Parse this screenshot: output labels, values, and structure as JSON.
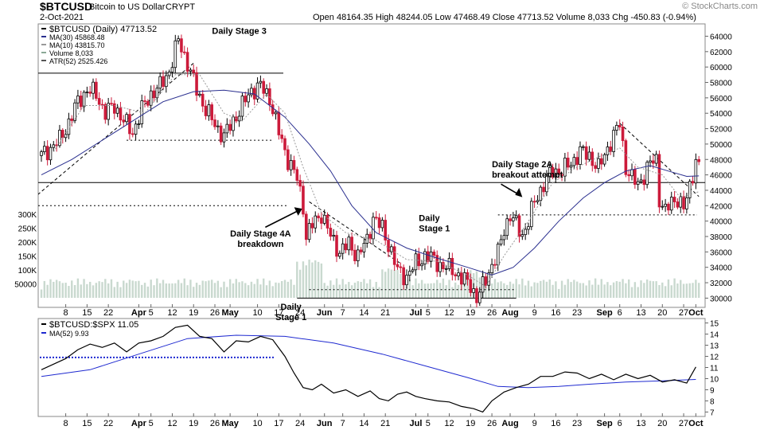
{
  "header": {
    "symbol": "$BTCUSD",
    "name": "Bitcoin to US Dollar",
    "exchange": "CRYPT",
    "date": "2-Oct-2021",
    "quote": "Open 48164.35  High 48244.05  Low 47468.49  Close 47713.52  Volume 8,033  Chg -450.83 (-0.94%)",
    "watermark": "© StockCharts.com"
  },
  "colors": {
    "up": "#000000",
    "down": "#cc1b3b",
    "ma30": "#2a2f8f",
    "ma10": "#999999",
    "volume": "#c9d9cf",
    "ratio": "#000000",
    "ratio_ma": "#1f2ad0"
  },
  "chart_data": [
    {
      "type": "candlestick",
      "legend": [
        "$BTCUSD (Daily) 47713.52",
        "MA(30) 45868.48",
        "MA(10) 43815.70",
        "Volume 8,033",
        "ATR(52) 2525.426"
      ],
      "y_ticks": [
        30000,
        32000,
        34000,
        36000,
        38000,
        40000,
        42000,
        44000,
        46000,
        48000,
        50000,
        52000,
        54000,
        56000,
        58000,
        60000,
        62000,
        64000
      ],
      "y_tick_labels": [
        "30000",
        "32000",
        "34000",
        "36000",
        "38000",
        "40000",
        "42000",
        "44000",
        "46000",
        "48000",
        "50000",
        "52000",
        "54000",
        "56000",
        "58000",
        "60000",
        "62000",
        "64000"
      ],
      "ylim": [
        28800,
        65600
      ],
      "volume_ticks": [
        50000,
        100000,
        150000,
        200000,
        250000,
        300000
      ],
      "volume_tick_labels": [
        "50000",
        "100K",
        "150K",
        "200K",
        "250K",
        "300K"
      ],
      "volume_scale_max": 400000,
      "x_ticks": [
        {
          "label": "8",
          "day": 8
        },
        {
          "label": "15",
          "day": 15
        },
        {
          "label": "22",
          "day": 22
        },
        {
          "label": "Apr",
          "day": 32
        },
        {
          "label": "5",
          "day": 36
        },
        {
          "label": "12",
          "day": 43
        },
        {
          "label": "19",
          "day": 50
        },
        {
          "label": "26",
          "day": 57
        },
        {
          "label": "May",
          "day": 62
        },
        {
          "label": "10",
          "day": 71
        },
        {
          "label": "17",
          "day": 78
        },
        {
          "label": "24",
          "day": 85
        },
        {
          "label": "Jun",
          "day": 93
        },
        {
          "label": "7",
          "day": 99
        },
        {
          "label": "14",
          "day": 106
        },
        {
          "label": "21",
          "day": 113
        },
        {
          "label": "Jul",
          "day": 123
        },
        {
          "label": "5",
          "day": 127
        },
        {
          "label": "12",
          "day": 134
        },
        {
          "label": "19",
          "day": 141
        },
        {
          "label": "26",
          "day": 148
        },
        {
          "label": "Aug",
          "day": 154
        },
        {
          "label": "9",
          "day": 162
        },
        {
          "label": "16",
          "day": 169
        },
        {
          "label": "23",
          "day": 176
        },
        {
          "label": "Sep",
          "day": 185
        },
        {
          "label": "6",
          "day": 190
        },
        {
          "label": "13",
          "day": 197
        },
        {
          "label": "20",
          "day": 204
        },
        {
          "label": "27",
          "day": 211
        },
        {
          "label": "Oct",
          "day": 215
        }
      ],
      "x_range": [
        0,
        217
      ],
      "close_path": [
        [
          0,
          48500
        ],
        [
          3,
          49500
        ],
        [
          6,
          50500
        ],
        [
          9,
          52800
        ],
        [
          12,
          55500
        ],
        [
          15,
          57000
        ],
        [
          18,
          56500
        ],
        [
          21,
          54000
        ],
        [
          24,
          55000
        ],
        [
          27,
          53000
        ],
        [
          30,
          51500
        ],
        [
          33,
          54500
        ],
        [
          36,
          56500
        ],
        [
          39,
          57500
        ],
        [
          42,
          59500
        ],
        [
          45,
          63500
        ],
        [
          48,
          60500
        ],
        [
          51,
          57000
        ],
        [
          54,
          54500
        ],
        [
          57,
          52500
        ],
        [
          60,
          51000
        ],
        [
          63,
          53000
        ],
        [
          66,
          55000
        ],
        [
          69,
          57000
        ],
        [
          72,
          57500
        ],
        [
          75,
          56000
        ],
        [
          78,
          51500
        ],
        [
          81,
          48000
        ],
        [
          84,
          45500
        ],
        [
          86,
          42000
        ],
        [
          87,
          38000
        ],
        [
          89,
          39500
        ],
        [
          92,
          41000
        ],
        [
          95,
          38000
        ],
        [
          98,
          36000
        ],
        [
          101,
          37000
        ],
        [
          104,
          35500
        ],
        [
          107,
          37500
        ],
        [
          109,
          40500
        ],
        [
          112,
          39000
        ],
        [
          115,
          36000
        ],
        [
          117,
          33500
        ],
        [
          120,
          32800
        ],
        [
          123,
          34500
        ],
        [
          126,
          35500
        ],
        [
          129,
          35000
        ],
        [
          132,
          34000
        ],
        [
          135,
          33800
        ],
        [
          138,
          32500
        ],
        [
          141,
          31800
        ],
        [
          143,
          29900
        ],
        [
          145,
          31500
        ],
        [
          147,
          33500
        ],
        [
          150,
          35800
        ],
        [
          152,
          39000
        ],
        [
          154,
          40800
        ],
        [
          156,
          39500
        ],
        [
          158,
          38200
        ],
        [
          160,
          40000
        ],
        [
          162,
          42500
        ],
        [
          165,
          44800
        ],
        [
          168,
          46500
        ],
        [
          171,
          46500
        ],
        [
          174,
          47500
        ],
        [
          177,
          49000
        ],
        [
          180,
          48500
        ],
        [
          183,
          46800
        ],
        [
          186,
          49500
        ],
        [
          188,
          51000
        ],
        [
          190,
          52700
        ],
        [
          192,
          47000
        ],
        [
          194,
          45500
        ],
        [
          196,
          44800
        ],
        [
          198,
          46000
        ],
        [
          200,
          47500
        ],
        [
          202,
          48000
        ],
        [
          203,
          43000
        ],
        [
          205,
          41200
        ],
        [
          207,
          42500
        ],
        [
          209,
          43000
        ],
        [
          211,
          41500
        ],
        [
          213,
          44500
        ],
        [
          215,
          48000
        ],
        [
          216,
          47713
        ]
      ],
      "ma30_path": [
        [
          0,
          46000
        ],
        [
          10,
          48000
        ],
        [
          20,
          50500
        ],
        [
          30,
          53000
        ],
        [
          40,
          55500
        ],
        [
          50,
          56800
        ],
        [
          60,
          57000
        ],
        [
          70,
          56500
        ],
        [
          80,
          53500
        ],
        [
          88,
          50000
        ],
        [
          95,
          46500
        ],
        [
          102,
          42000
        ],
        [
          110,
          38500
        ],
        [
          120,
          36500
        ],
        [
          130,
          35200
        ],
        [
          140,
          34000
        ],
        [
          148,
          33000
        ],
        [
          155,
          34000
        ],
        [
          162,
          36500
        ],
        [
          170,
          40000
        ],
        [
          178,
          43000
        ],
        [
          185,
          45000
        ],
        [
          192,
          46500
        ],
        [
          200,
          47200
        ],
        [
          206,
          46500
        ],
        [
          212,
          45800
        ],
        [
          216,
          45868
        ]
      ],
      "ma10_path": [
        [
          4,
          49000
        ],
        [
          14,
          55000
        ],
        [
          24,
          55000
        ],
        [
          34,
          54000
        ],
        [
          44,
          59000
        ],
        [
          52,
          59000
        ],
        [
          60,
          54000
        ],
        [
          66,
          53000
        ],
        [
          74,
          56500
        ],
        [
          80,
          54000
        ],
        [
          86,
          47000
        ],
        [
          92,
          41000
        ],
        [
          100,
          38500
        ],
        [
          110,
          37500
        ],
        [
          120,
          35000
        ],
        [
          130,
          34800
        ],
        [
          140,
          33000
        ],
        [
          146,
          31500
        ],
        [
          152,
          35500
        ],
        [
          160,
          40000
        ],
        [
          168,
          45000
        ],
        [
          176,
          47000
        ],
        [
          184,
          48500
        ],
        [
          190,
          49500
        ],
        [
          196,
          47000
        ],
        [
          204,
          46000
        ],
        [
          210,
          43000
        ],
        [
          216,
          43815
        ]
      ],
      "annotations": [
        {
          "text": "Daily Stage 3",
          "day": 65,
          "price": 64300,
          "anchor": "middle",
          "lines": [
            "Daily Stage 3"
          ]
        },
        {
          "text": "Daily Stage 4A breakdown",
          "day": 72,
          "price": 38000,
          "anchor": "middle",
          "lines": [
            "Daily Stage 4A",
            "breakdown"
          ]
        },
        {
          "text": "Daily Stage 1",
          "day": 124,
          "price": 40000,
          "anchor": "start",
          "lines": [
            "Daily",
            "Stage 1"
          ]
        },
        {
          "text": "Daily Stage 2A breakout attempt",
          "day": 148,
          "price": 47000,
          "anchor": "start",
          "lines": [
            "Daily Stage 2A",
            "breakout attempt"
          ]
        },
        {
          "text": "Daily Stage 1",
          "day": 82,
          "price": 28500,
          "anchor": "middle",
          "lines": [
            "Daily",
            "Stage 1"
          ]
        }
      ]
    },
    {
      "type": "line",
      "legend": [
        "$BTCUSD:$SPX 11.05",
        "MA(52) 9.93"
      ],
      "y_ticks": [
        7,
        8,
        9,
        10,
        11,
        12,
        13,
        14,
        15
      ],
      "y_tick_labels": [
        "7",
        "8",
        "9",
        "10",
        "11",
        "12",
        "13",
        "14",
        "15"
      ],
      "ylim": [
        6.6,
        15.4
      ],
      "series": [
        {
          "name": "$BTCUSD:$SPX",
          "points": [
            [
              0,
              10.8
            ],
            [
              4,
              11.3
            ],
            [
              8,
              11.8
            ],
            [
              12,
              12.6
            ],
            [
              16,
              13.1
            ],
            [
              20,
              12.8
            ],
            [
              24,
              13.2
            ],
            [
              28,
              12.4
            ],
            [
              32,
              13.2
            ],
            [
              36,
              13.4
            ],
            [
              40,
              13.8
            ],
            [
              44,
              14.6
            ],
            [
              48,
              14.8
            ],
            [
              52,
              13.8
            ],
            [
              56,
              13.6
            ],
            [
              60,
              12.4
            ],
            [
              64,
              13.4
            ],
            [
              68,
              13.3
            ],
            [
              72,
              13.8
            ],
            [
              76,
              13.5
            ],
            [
              80,
              12.0
            ],
            [
              83,
              10.5
            ],
            [
              86,
              9.2
            ],
            [
              89,
              9.0
            ],
            [
              92,
              9.5
            ],
            [
              96,
              8.7
            ],
            [
              100,
              9.0
            ],
            [
              104,
              8.4
            ],
            [
              108,
              8.9
            ],
            [
              111,
              8.2
            ],
            [
              114,
              8.0
            ],
            [
              117,
              8.6
            ],
            [
              120,
              8.8
            ],
            [
              123,
              8.4
            ],
            [
              126,
              8.2
            ],
            [
              130,
              8.0
            ],
            [
              134,
              7.9
            ],
            [
              138,
              7.5
            ],
            [
              142,
              7.3
            ],
            [
              145,
              7.0
            ],
            [
              148,
              8.0
            ],
            [
              152,
              8.8
            ],
            [
              156,
              9.2
            ],
            [
              160,
              9.5
            ],
            [
              164,
              10.2
            ],
            [
              168,
              10.2
            ],
            [
              172,
              10.6
            ],
            [
              176,
              10.5
            ],
            [
              180,
              10.0
            ],
            [
              184,
              10.4
            ],
            [
              188,
              9.9
            ],
            [
              192,
              10.4
            ],
            [
              196,
              10.0
            ],
            [
              200,
              10.3
            ],
            [
              204,
              9.7
            ],
            [
              208,
              9.9
            ],
            [
              212,
              9.6
            ],
            [
              215,
              11.05
            ]
          ]
        },
        {
          "name": "MA(52)",
          "points": [
            [
              0,
              10.2
            ],
            [
              16,
              10.8
            ],
            [
              32,
              12.2
            ],
            [
              48,
              13.6
            ],
            [
              64,
              13.9
            ],
            [
              80,
              13.8
            ],
            [
              96,
              13.2
            ],
            [
              112,
              12.2
            ],
            [
              128,
              11.0
            ],
            [
              140,
              10.1
            ],
            [
              150,
              9.3
            ],
            [
              160,
              9.2
            ],
            [
              170,
              9.3
            ],
            [
              180,
              9.5
            ],
            [
              192,
              9.7
            ],
            [
              204,
              9.8
            ],
            [
              215,
              9.93
            ]
          ]
        }
      ]
    }
  ]
}
